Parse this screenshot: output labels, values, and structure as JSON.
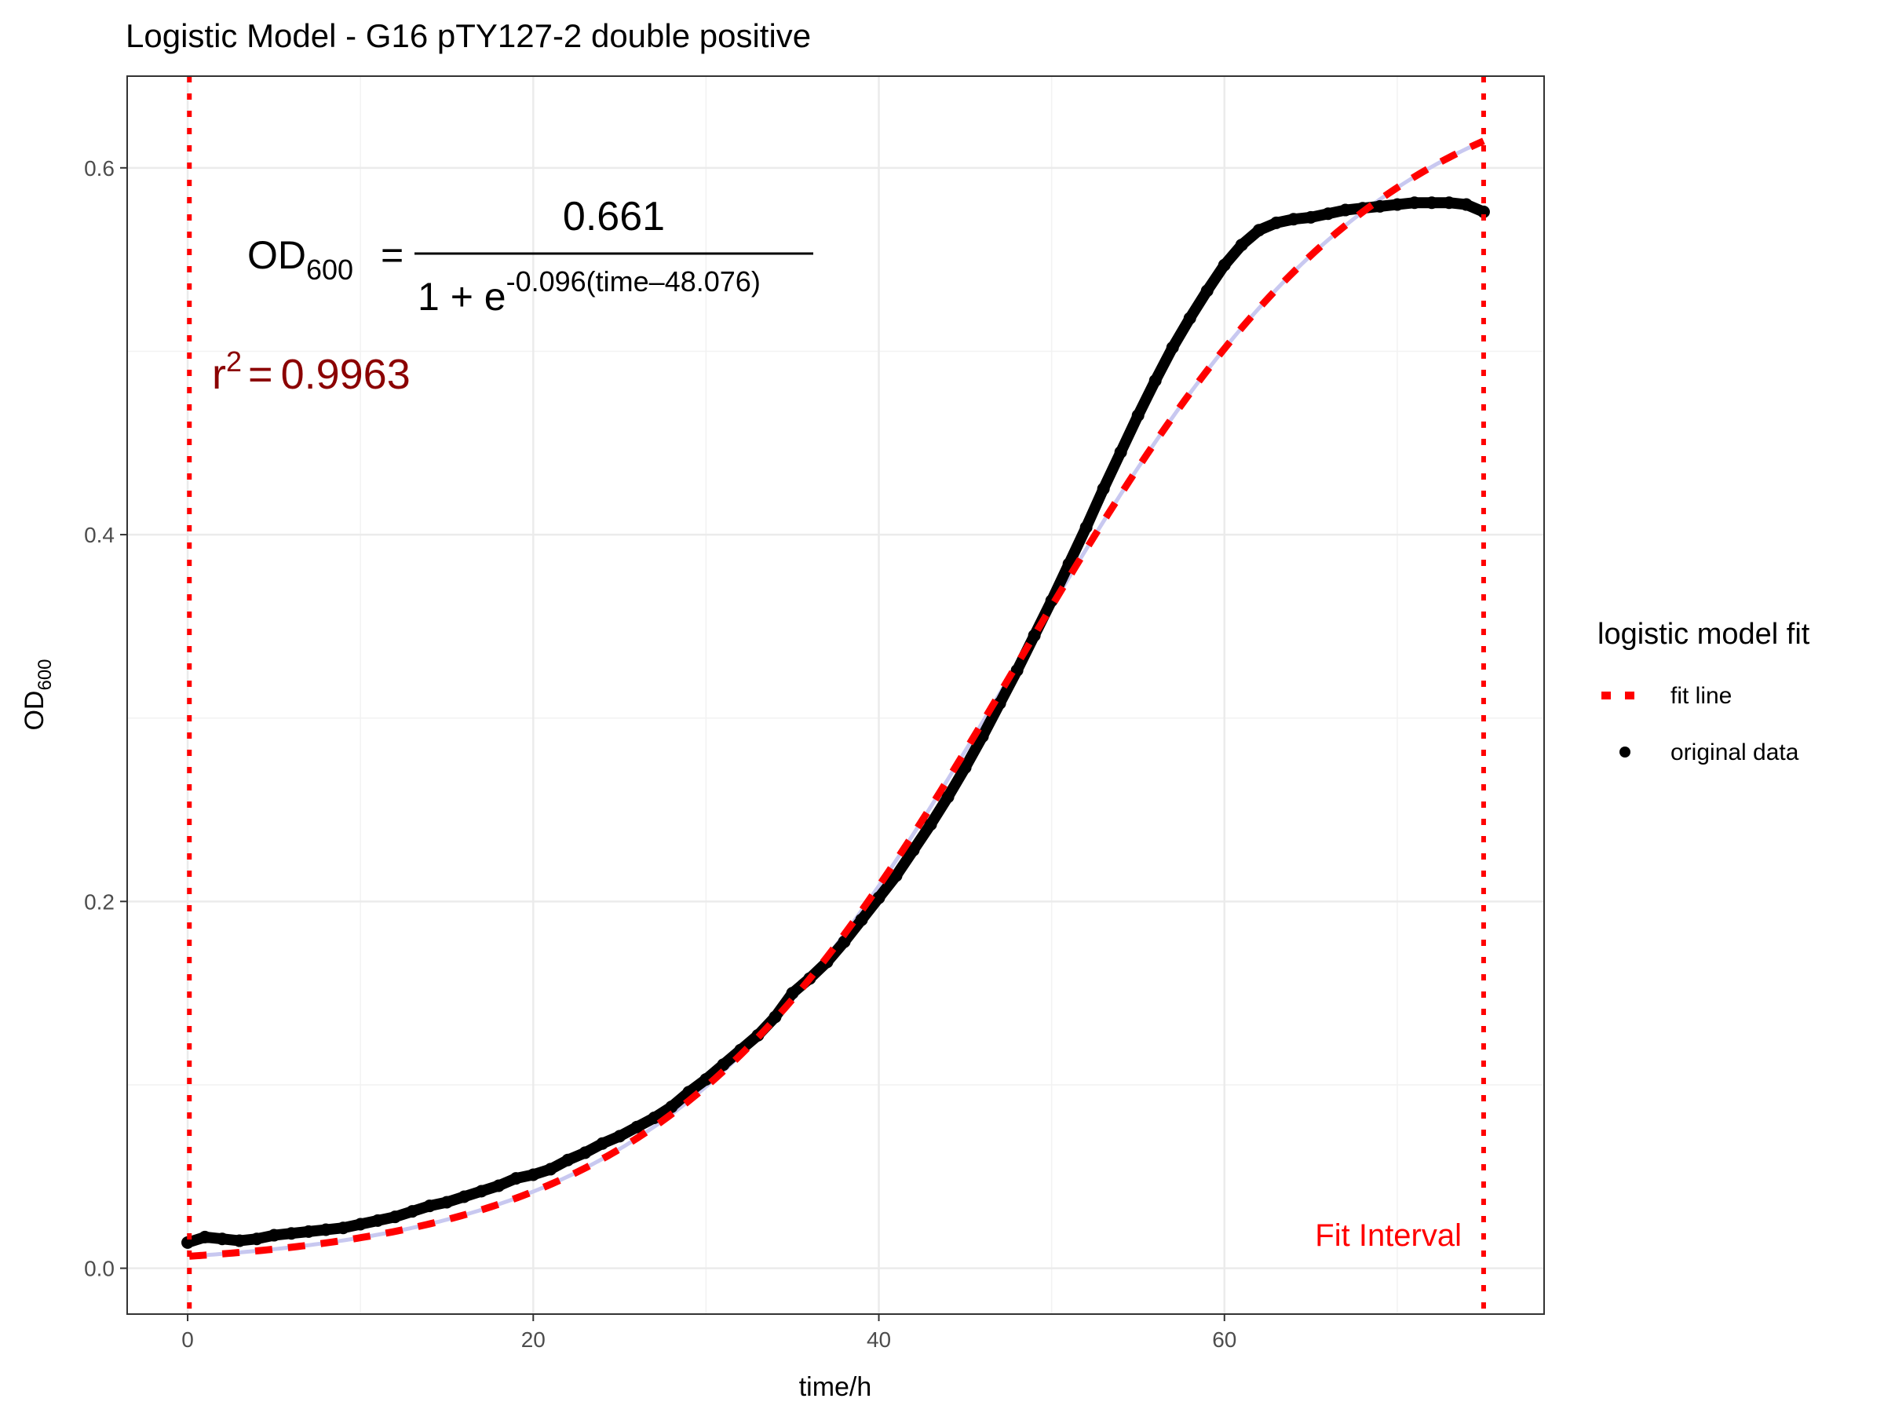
{
  "chart_data": {
    "type": "scatter",
    "title": "Logistic Model -  G16 pTY127-2 double positive",
    "xlabel": "time/h",
    "ylabel": {
      "main": "OD",
      "sub": "600"
    },
    "xlim": [
      -3.5,
      78.5
    ],
    "ylim": [
      -0.025,
      0.65
    ],
    "x_ticks": [
      0,
      20,
      40,
      60
    ],
    "x_tick_labels": [
      "0",
      "20",
      "40",
      "60"
    ],
    "y_ticks": [
      0.0,
      0.2,
      0.4,
      0.6
    ],
    "y_tick_labels": [
      "0.0",
      "0.2",
      "0.4",
      "0.6"
    ],
    "grid": true,
    "legend": {
      "title": "logistic model fit",
      "position": "right",
      "entries": [
        {
          "label": "fit line",
          "style": "dotted",
          "color": "#ff0000"
        },
        {
          "label": "original data",
          "style": "point",
          "color": "#000000"
        }
      ]
    },
    "model": {
      "K": 0.661,
      "r": 0.096,
      "t0": 48.076
    },
    "equation": {
      "lhs": "OD",
      "lhs_sub": "600",
      "equals": "=",
      "numerator": "0.661",
      "denominator_prefix": "1 + e",
      "exponent": "-0.096(time–48.076)"
    },
    "r_squared": {
      "symbol": "r",
      "power": "2",
      "equals": "=",
      "value": "0.9963"
    },
    "fit_interval": {
      "label": "Fit Interval",
      "start": 0.1,
      "end": 75
    },
    "series": [
      {
        "name": "original data",
        "points": [
          [
            0.0,
            0.014
          ],
          [
            1.0,
            0.017
          ],
          [
            2.0,
            0.016
          ],
          [
            3.0,
            0.015
          ],
          [
            4.0,
            0.016
          ],
          [
            5.0,
            0.018
          ],
          [
            6.0,
            0.019
          ],
          [
            7.0,
            0.02
          ],
          [
            8.0,
            0.021
          ],
          [
            9.0,
            0.022
          ],
          [
            10.0,
            0.024
          ],
          [
            11.0,
            0.026
          ],
          [
            12.0,
            0.028
          ],
          [
            13.0,
            0.031
          ],
          [
            14.0,
            0.034
          ],
          [
            15.0,
            0.036
          ],
          [
            16.0,
            0.039
          ],
          [
            17.0,
            0.042
          ],
          [
            18.0,
            0.045
          ],
          [
            19.0,
            0.049
          ],
          [
            20.0,
            0.051
          ],
          [
            21.0,
            0.054
          ],
          [
            22.0,
            0.059
          ],
          [
            23.0,
            0.063
          ],
          [
            24.0,
            0.068
          ],
          [
            25.0,
            0.072
          ],
          [
            26.0,
            0.077
          ],
          [
            27.0,
            0.082
          ],
          [
            28.0,
            0.088
          ],
          [
            29.0,
            0.096
          ],
          [
            30.0,
            0.103
          ],
          [
            31.0,
            0.111
          ],
          [
            32.0,
            0.119
          ],
          [
            33.0,
            0.127
          ],
          [
            34.0,
            0.137
          ],
          [
            35.0,
            0.15
          ],
          [
            36.0,
            0.158
          ],
          [
            37.0,
            0.167
          ],
          [
            38.0,
            0.178
          ],
          [
            39.0,
            0.19
          ],
          [
            40.0,
            0.202
          ],
          [
            41.0,
            0.214
          ],
          [
            42.0,
            0.228
          ],
          [
            43.0,
            0.242
          ],
          [
            44.0,
            0.257
          ],
          [
            45.0,
            0.273
          ],
          [
            46.0,
            0.29
          ],
          [
            47.0,
            0.308
          ],
          [
            48.0,
            0.326
          ],
          [
            49.0,
            0.345
          ],
          [
            50.0,
            0.364
          ],
          [
            51.0,
            0.384
          ],
          [
            52.0,
            0.404
          ],
          [
            53.0,
            0.425
          ],
          [
            54.0,
            0.445
          ],
          [
            55.0,
            0.465
          ],
          [
            56.0,
            0.484
          ],
          [
            57.0,
            0.502
          ],
          [
            58.0,
            0.518
          ],
          [
            59.0,
            0.533
          ],
          [
            60.0,
            0.547
          ],
          [
            61.0,
            0.558
          ],
          [
            62.0,
            0.566
          ],
          [
            63.0,
            0.57
          ],
          [
            64.0,
            0.572
          ],
          [
            65.0,
            0.573
          ],
          [
            66.0,
            0.575
          ],
          [
            67.0,
            0.577
          ],
          [
            68.0,
            0.578
          ],
          [
            69.0,
            0.579
          ],
          [
            70.0,
            0.58
          ],
          [
            71.0,
            0.581
          ],
          [
            72.0,
            0.581
          ],
          [
            73.0,
            0.581
          ],
          [
            74.0,
            0.58
          ],
          [
            75.0,
            0.576
          ]
        ]
      }
    ]
  }
}
